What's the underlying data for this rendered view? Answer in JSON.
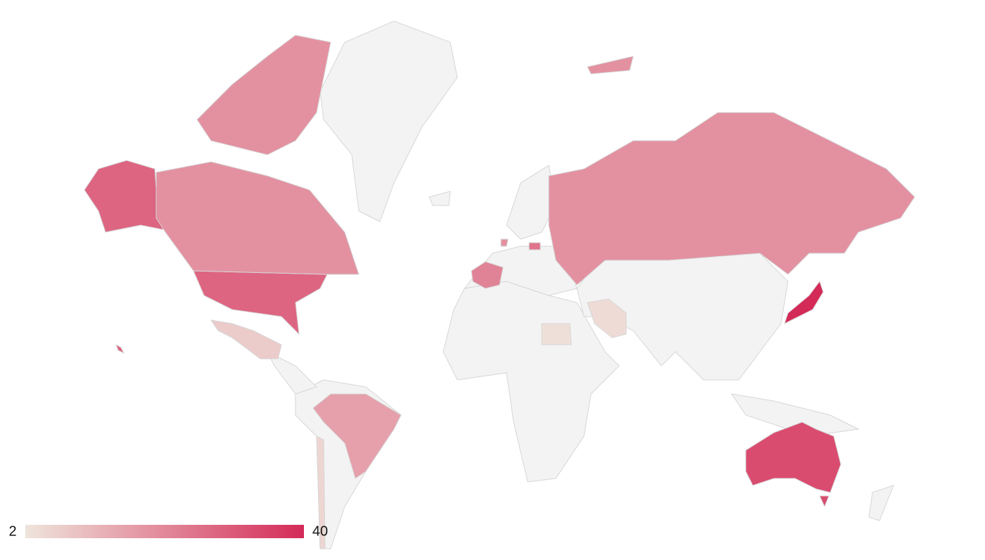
{
  "chart_data": {
    "type": "choropleth",
    "values": [
      28,
      19,
      7,
      16,
      5,
      22,
      19,
      4,
      3,
      40,
      33,
      25,
      19
    ],
    "scale": [
      2,
      40
    ],
    "colors": [
      "#efe5dc",
      "#d42a58"
    ],
    "land_color": "#f3f3f3",
    "border_color": "#d6d6d6"
  }
}
